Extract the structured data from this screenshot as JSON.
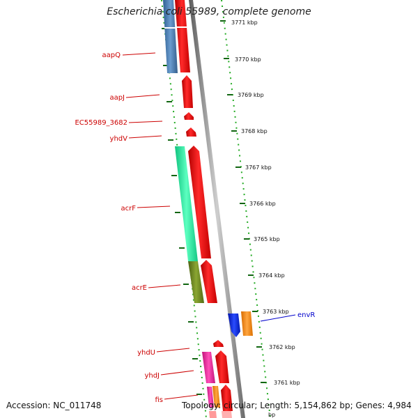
{
  "title": "Escherichia coli 55989, complete genome",
  "footer": {
    "accession": "Accession: NC_011748",
    "topology": "Topology: circular; Length: 5,154,862 bp; Genes: 4,984"
  },
  "scale": {
    "unit": "kbp",
    "ticks": [
      {
        "kbp": 3771,
        "label": "3771 kbp"
      },
      {
        "kbp": 3770,
        "label": "3770 kbp"
      },
      {
        "kbp": 3769,
        "label": "3769 kbp"
      },
      {
        "kbp": 3768,
        "label": "3768 kbp"
      },
      {
        "kbp": 3767,
        "label": "3767 kbp"
      },
      {
        "kbp": 3766,
        "label": "3766 kbp"
      },
      {
        "kbp": 3765,
        "label": "3765 kbp"
      },
      {
        "kbp": 3764,
        "label": "3764 kbp"
      },
      {
        "kbp": 3763,
        "label": "3763 kbp"
      },
      {
        "kbp": 3762,
        "label": "3762 kbp"
      },
      {
        "kbp": 3761,
        "label": "3761 kbp"
      }
    ]
  },
  "colors": {
    "red": "#ee0000",
    "steel_blue": "#4a7fb5",
    "spring_green": "#22e8a0",
    "olive": "#6f8a22",
    "magenta": "#ee2299",
    "orange": "#ff8800",
    "blue": "#0022dd",
    "backbone": "#8a8a8a",
    "dots": "#22aa22"
  },
  "genes": [
    {
      "name": "aapQ",
      "label": true
    },
    {
      "name": "aapJ",
      "label": true
    },
    {
      "name": "EC55989_3682",
      "label": true
    },
    {
      "name": "yhdV",
      "label": true
    },
    {
      "name": "acrF",
      "label": true
    },
    {
      "name": "acrE",
      "label": true
    },
    {
      "name": "envR",
      "label": true
    },
    {
      "name": "yhdU",
      "label": true
    },
    {
      "name": "yhdJ",
      "label": true
    },
    {
      "name": "fis",
      "label": true
    }
  ]
}
